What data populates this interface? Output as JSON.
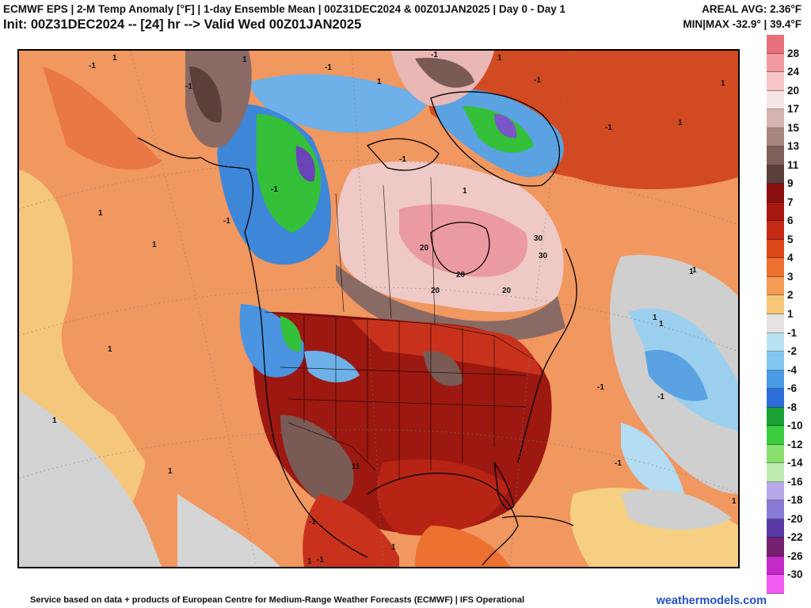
{
  "header": {
    "title_line1": "ECMWF EPS | 2-M Temp Anomaly [°F] | 1-day Ensemble Mean | 00Z31DEC2024 & 00Z01JAN2025 | Day 0 - Day 1",
    "title_line2": "Init: 00Z31DEC2024 -- [24] hr --> Valid Wed 00Z01JAN2025",
    "areal_avg": "AREAL AVG: 2.36°F",
    "min_max": "MIN|MAX -32.9° | 39.4°F"
  },
  "map": {
    "contour_labels": [
      "1",
      "-1",
      "-1",
      "1",
      "-1",
      "1",
      "-1",
      "1",
      "-1",
      "-1",
      "1",
      "1",
      "-1",
      "1",
      "20",
      "20",
      "30",
      "20",
      "30",
      "20",
      "1",
      "-1",
      "-1",
      "1",
      "1",
      "1",
      "1",
      "-1",
      "-1",
      "1",
      "1",
      "-1",
      "1",
      "1",
      "-1",
      "1",
      "1",
      "1",
      "11",
      "-1"
    ]
  },
  "colorbar": {
    "labels": [
      "28",
      "24",
      "20",
      "17",
      "15",
      "13",
      "11",
      "9",
      "7",
      "6",
      "5",
      "4",
      "3",
      "2",
      "1",
      "-1",
      "-2",
      "-4",
      "-6",
      "-8",
      "-10",
      "-12",
      "-14",
      "-16",
      "-18",
      "-20",
      "-22",
      "-26",
      "-30"
    ],
    "colors": [
      "#e8707c",
      "#f29aa2",
      "#f7c4c8",
      "#f4e6e6",
      "#d5b3b0",
      "#a88680",
      "#80605a",
      "#5a3f3a",
      "#8a1010",
      "#a81810",
      "#c42a14",
      "#dc4818",
      "#ec7030",
      "#f49b55",
      "#f7c679",
      "#e4e4e4",
      "#b8e4f2",
      "#82c8ee",
      "#4a9be6",
      "#2d6fd8",
      "#1aa034",
      "#3ccc40",
      "#8ae06e",
      "#c0ecb0",
      "#b7a8ea",
      "#8a7ad8",
      "#5a3aa6",
      "#762070",
      "#c42ac8",
      "#f25cf2"
    ]
  },
  "footer": {
    "source_text": "Service based on data + products of European Centre for Medium-Range Weather Forecasts (ECMWF) | IFS Operational",
    "credit": "weathermodels.com"
  },
  "palette": {
    "ocean_orange": "#f19760",
    "gray_land": "#cfcfcf",
    "dark_red": "#9c1810",
    "red": "#c8321c",
    "blue": "#3e86d8",
    "light_blue": "#a8d6ef",
    "green": "#34c038",
    "pink": "#eec9c6",
    "brown": "#7a5a55",
    "yellow": "#f6cf82",
    "purple": "#7a56c8"
  }
}
